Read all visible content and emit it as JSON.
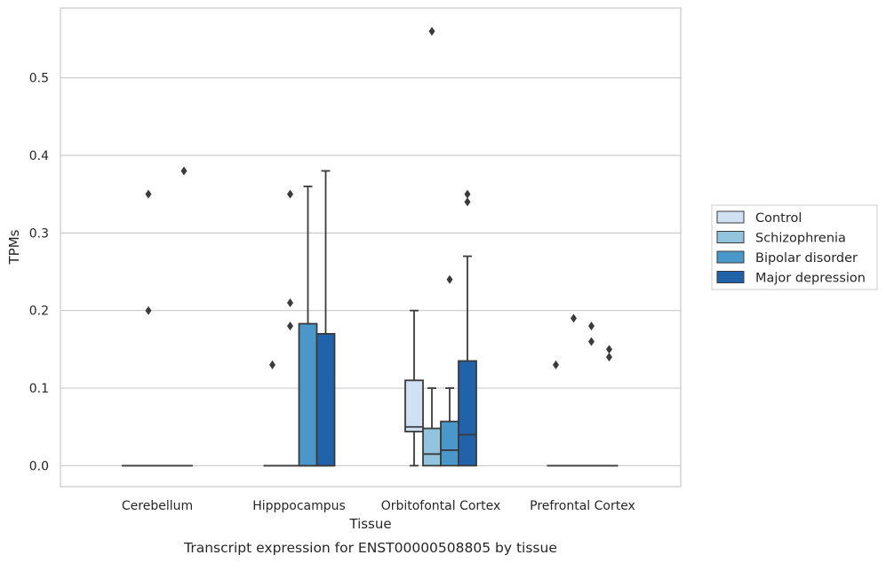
{
  "chart_data": {
    "type": "box",
    "caption": "Transcript expression for ENST00000508805 by tissue",
    "xlabel": "Tissue",
    "ylabel": "TPMs",
    "ylim": [
      -0.027,
      0.59
    ],
    "yticks": [
      "0.0",
      "0.1",
      "0.2",
      "0.3",
      "0.4",
      "0.5"
    ],
    "grid": true,
    "legend_position": "right",
    "categories": [
      "Cerebellum",
      "Hipppocampus",
      "Orbitofontal Cortex",
      "Prefrontal Cortex"
    ],
    "series": [
      {
        "name": "Control",
        "color": "#cfe1f2"
      },
      {
        "name": "Schizophrenia",
        "color": "#93c4de"
      },
      {
        "name": "Bipolar disorder",
        "color": "#4a98c9"
      },
      {
        "name": "Major depression",
        "color": "#2163aa"
      }
    ],
    "boxes": [
      {
        "category": "Cerebellum",
        "series": "Control",
        "whisker_low": 0,
        "q1": 0,
        "median": 0,
        "q3": 0,
        "whisker_high": 0,
        "outliers": []
      },
      {
        "category": "Cerebellum",
        "series": "Schizophrenia",
        "whisker_low": 0,
        "q1": 0,
        "median": 0,
        "q3": 0,
        "whisker_high": 0,
        "outliers": [
          0.2,
          0.35
        ]
      },
      {
        "category": "Cerebellum",
        "series": "Bipolar disorder",
        "whisker_low": 0,
        "q1": 0,
        "median": 0,
        "q3": 0,
        "whisker_high": 0,
        "outliers": []
      },
      {
        "category": "Cerebellum",
        "series": "Major depression",
        "whisker_low": 0,
        "q1": 0,
        "median": 0,
        "q3": 0,
        "whisker_high": 0,
        "outliers": [
          0.38
        ]
      },
      {
        "category": "Hipppocampus",
        "series": "Control",
        "whisker_low": 0,
        "q1": 0,
        "median": 0,
        "q3": 0,
        "whisker_high": 0,
        "outliers": [
          0.13
        ]
      },
      {
        "category": "Hipppocampus",
        "series": "Schizophrenia",
        "whisker_low": 0,
        "q1": 0,
        "median": 0,
        "q3": 0,
        "whisker_high": 0,
        "outliers": [
          0.18,
          0.21,
          0.35
        ]
      },
      {
        "category": "Hipppocampus",
        "series": "Bipolar disorder",
        "whisker_low": 0,
        "q1": 0,
        "median": 0,
        "q3": 0.183,
        "whisker_high": 0.36,
        "outliers": []
      },
      {
        "category": "Hipppocampus",
        "series": "Major depression",
        "whisker_low": 0,
        "q1": 0,
        "median": 0,
        "q3": 0.17,
        "whisker_high": 0.38,
        "outliers": []
      },
      {
        "category": "Orbitofontal Cortex",
        "series": "Control",
        "whisker_low": 0,
        "q1": 0.044,
        "median": 0.05,
        "q3": 0.11,
        "whisker_high": 0.2,
        "outliers": []
      },
      {
        "category": "Orbitofontal Cortex",
        "series": "Schizophrenia",
        "whisker_low": 0,
        "q1": 0,
        "median": 0.015,
        "q3": 0.048,
        "whisker_high": 0.1,
        "outliers": [
          0.56
        ]
      },
      {
        "category": "Orbitofontal Cortex",
        "series": "Bipolar disorder",
        "whisker_low": 0,
        "q1": 0,
        "median": 0.02,
        "q3": 0.057,
        "whisker_high": 0.1,
        "outliers": [
          0.24
        ]
      },
      {
        "category": "Orbitofontal Cortex",
        "series": "Major depression",
        "whisker_low": 0,
        "q1": 0,
        "median": 0.04,
        "q3": 0.135,
        "whisker_high": 0.27,
        "outliers": [
          0.34,
          0.35
        ]
      },
      {
        "category": "Prefrontal Cortex",
        "series": "Control",
        "whisker_low": 0,
        "q1": 0,
        "median": 0,
        "q3": 0,
        "whisker_high": 0,
        "outliers": [
          0.13
        ]
      },
      {
        "category": "Prefrontal Cortex",
        "series": "Schizophrenia",
        "whisker_low": 0,
        "q1": 0,
        "median": 0,
        "q3": 0,
        "whisker_high": 0,
        "outliers": [
          0.19
        ]
      },
      {
        "category": "Prefrontal Cortex",
        "series": "Bipolar disorder",
        "whisker_low": 0,
        "q1": 0,
        "median": 0,
        "q3": 0,
        "whisker_high": 0,
        "outliers": [
          0.16,
          0.18
        ]
      },
      {
        "category": "Prefrontal Cortex",
        "series": "Major depression",
        "whisker_low": 0,
        "q1": 0,
        "median": 0,
        "q3": 0,
        "whisker_high": 0,
        "outliers": [
          0.14,
          0.15
        ]
      }
    ]
  }
}
